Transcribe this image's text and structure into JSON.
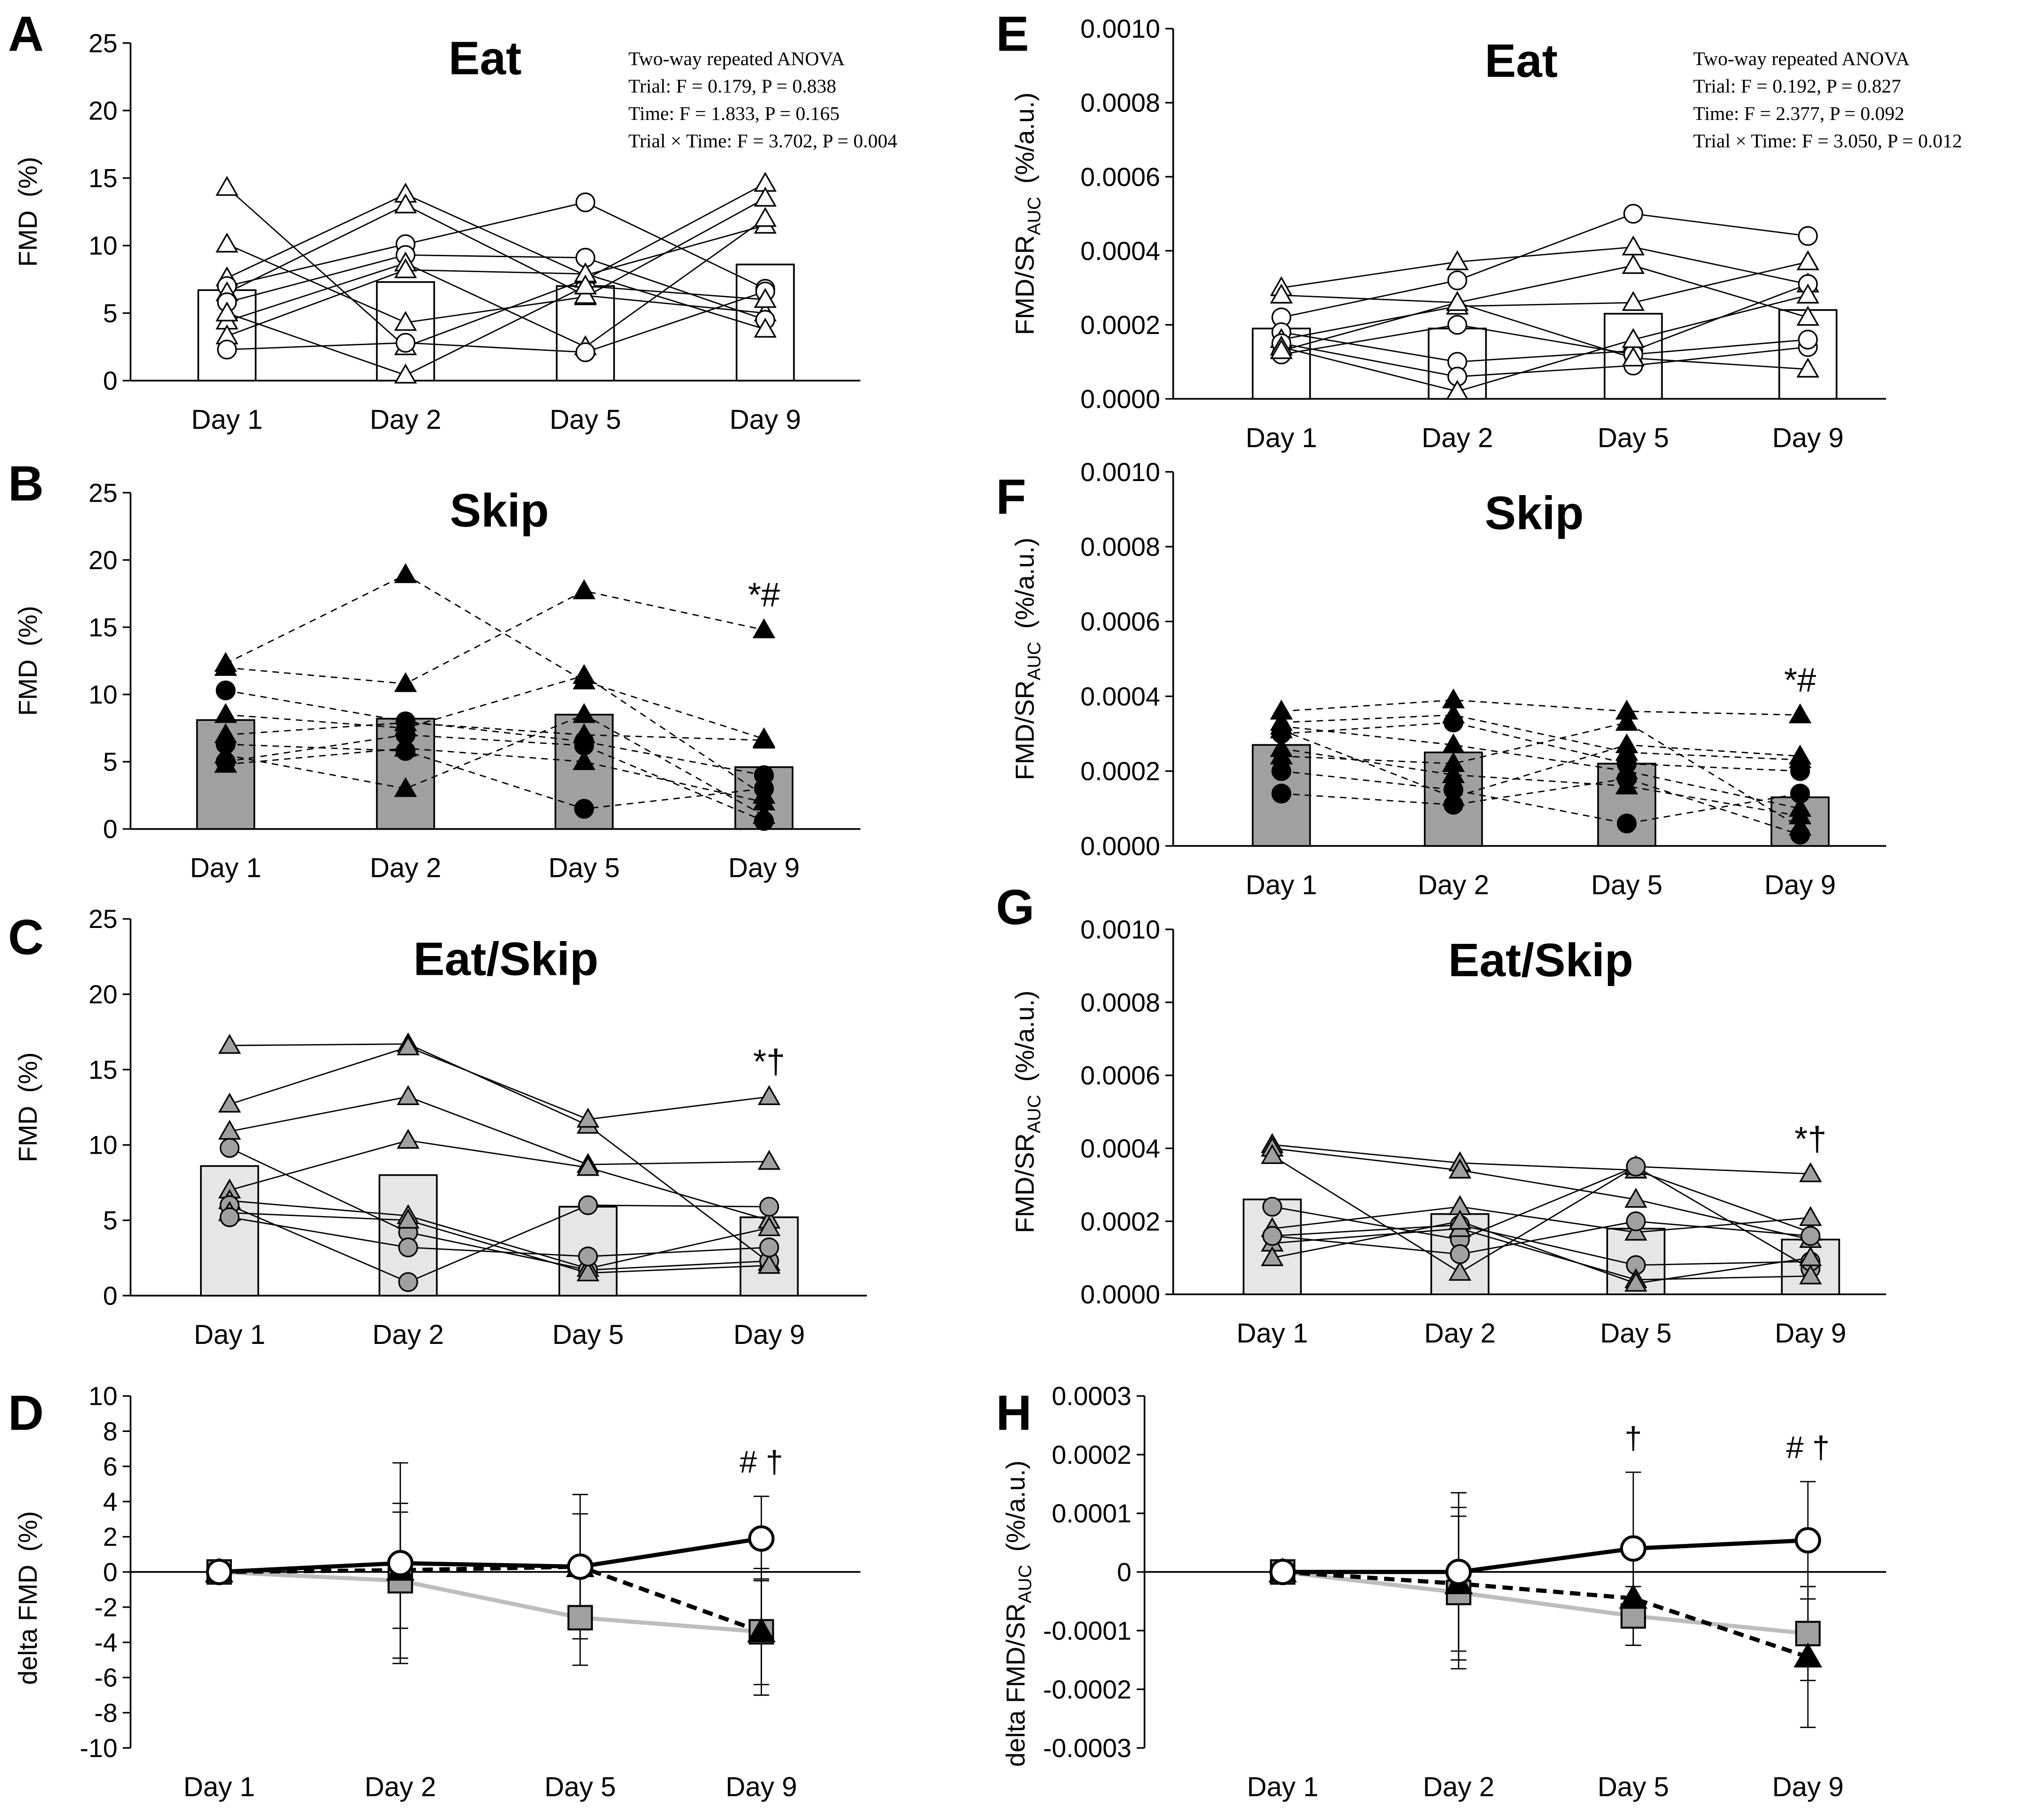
{
  "colors": {
    "open_marker": "#ffffff",
    "black_marker": "#000000",
    "gray_marker": "#a0a0a0",
    "skip_bar": "#a0a0a0",
    "eatskip_bar": "#e6e6e6",
    "eatskip_line": "#bdbdbd"
  },
  "chart_data": [
    {
      "panel": "A",
      "type": "bar",
      "title": "Eat",
      "ylabel": {
        "main": "FMD",
        "sub": "",
        "unit": "(%)"
      },
      "ylim": [
        0,
        25
      ],
      "yticks": [
        "0",
        "5",
        "10",
        "15",
        "20",
        "25"
      ],
      "ytick_values": [
        0,
        5,
        10,
        15,
        20,
        25
      ],
      "categories": [
        "Day 1",
        "Day 2",
        "Day 5",
        "Day 9"
      ],
      "bar_values": [
        6.7,
        7.3,
        7.0,
        8.6
      ],
      "marker_fill": "open",
      "line_style": "solid",
      "subjects": [
        {
          "marker": "triangle",
          "values": [
            14.3,
            2.5,
            7.5,
            14.6
          ]
        },
        {
          "marker": "triangle",
          "values": [
            10.1,
            4.3,
            6.2,
            13.5
          ]
        },
        {
          "marker": "triangle",
          "values": [
            7.6,
            13.8,
            7.8,
            11.5
          ]
        },
        {
          "marker": "circle",
          "values": [
            7.0,
            10.1,
            13.2,
            6.8
          ]
        },
        {
          "marker": "triangle",
          "values": [
            6.5,
            13.0,
            6.3,
            5.0
          ]
        },
        {
          "marker": "circle",
          "values": [
            5.8,
            9.3,
            9.1,
            4.5
          ]
        },
        {
          "marker": "triangle",
          "values": [
            4.4,
            8.7,
            2.5,
            12.0
          ]
        },
        {
          "marker": "triangle",
          "values": [
            3.3,
            8.2,
            7.9,
            3.8
          ]
        },
        {
          "marker": "circle",
          "values": [
            2.3,
            2.8,
            2.1,
            6.6
          ]
        },
        {
          "marker": "triangle",
          "values": [
            5.0,
            0.4,
            7.0,
            6.0
          ]
        }
      ],
      "annotation": "",
      "anova": [
        "Two-way repeated ANOVA",
        "Trial: F = 0.179, P = 0.838",
        "Time: F = 1.833, P = 0.165",
        "Trial × Time: F = 3.702, P = 0.004"
      ]
    },
    {
      "panel": "B",
      "type": "bar",
      "title": "Skip",
      "ylabel": {
        "main": "FMD",
        "sub": "",
        "unit": "(%)"
      },
      "ylim": [
        0,
        25
      ],
      "yticks": [
        "0",
        "5",
        "10",
        "15",
        "20",
        "25"
      ],
      "ytick_values": [
        0,
        5,
        10,
        15,
        20,
        25
      ],
      "categories": [
        "Day 1",
        "Day 2",
        "Day 5",
        "Day 9"
      ],
      "bar_values": [
        8.1,
        8.2,
        8.5,
        4.6
      ],
      "marker_fill": "black",
      "line_style": "dashed",
      "subjects": [
        {
          "marker": "triangle",
          "values": [
            12.3,
            18.9,
            11.0,
            6.7
          ]
        },
        {
          "marker": "triangle",
          "values": [
            12.0,
            10.8,
            17.7,
            14.8
          ]
        },
        {
          "marker": "circle",
          "values": [
            10.3,
            8.0,
            6.5,
            4.0
          ]
        },
        {
          "marker": "triangle",
          "values": [
            8.5,
            7.5,
            11.4,
            2.5
          ]
        },
        {
          "marker": "triangle",
          "values": [
            7.0,
            7.9,
            7.0,
            6.6
          ]
        },
        {
          "marker": "circle",
          "values": [
            6.3,
            5.8,
            1.5,
            3.0
          ]
        },
        {
          "marker": "triangle",
          "values": [
            5.5,
            3.0,
            8.5,
            1.0
          ]
        },
        {
          "marker": "circle",
          "values": [
            5.0,
            7.0,
            6.2,
            0.6
          ]
        },
        {
          "marker": "triangle",
          "values": [
            4.8,
            6.0,
            5.0,
            2.0
          ]
        }
      ],
      "annotation": "*#"
    },
    {
      "panel": "C",
      "type": "bar",
      "title": "Eat/Skip",
      "ylabel": {
        "main": "FMD",
        "sub": "",
        "unit": "(%)"
      },
      "ylim": [
        0,
        25
      ],
      "yticks": [
        "0",
        "5",
        "10",
        "15",
        "20",
        "25"
      ],
      "ytick_values": [
        0,
        5,
        10,
        15,
        20,
        25
      ],
      "categories": [
        "Day 1",
        "Day 2",
        "Day 5",
        "Day 9"
      ],
      "bar_values": [
        8.6,
        8.0,
        5.9,
        5.2
      ],
      "marker_fill": "gray",
      "line_style": "solid",
      "subjects": [
        {
          "marker": "triangle",
          "values": [
            16.6,
            16.7,
            11.3,
            2.2
          ]
        },
        {
          "marker": "triangle",
          "values": [
            12.7,
            16.5,
            11.7,
            13.2
          ]
        },
        {
          "marker": "triangle",
          "values": [
            10.9,
            13.2,
            8.7,
            8.9
          ]
        },
        {
          "marker": "circle",
          "values": [
            9.8,
            4.2,
            1.7,
            2.3
          ]
        },
        {
          "marker": "triangle",
          "values": [
            7.0,
            10.3,
            8.5,
            5.0
          ]
        },
        {
          "marker": "triangle",
          "values": [
            6.3,
            5.3,
            1.8,
            4.5
          ]
        },
        {
          "marker": "circle",
          "values": [
            6.0,
            0.9,
            6.0,
            5.9
          ]
        },
        {
          "marker": "triangle",
          "values": [
            5.5,
            5.0,
            1.5,
            2.0
          ]
        },
        {
          "marker": "circle",
          "values": [
            5.2,
            3.2,
            2.6,
            3.2
          ]
        }
      ],
      "annotation": "*†"
    },
    {
      "panel": "D",
      "type": "line",
      "title": "",
      "ylabel": {
        "main": "delta FMD",
        "sub": "",
        "unit": "(%)"
      },
      "ylim": [
        -10,
        10
      ],
      "yticks": [
        "-10",
        "-8",
        "-6",
        "-4",
        "-2",
        "0",
        "2",
        "4",
        "6",
        "8",
        "10"
      ],
      "ytick_values": [
        -10,
        -8,
        -6,
        -4,
        -2,
        0,
        2,
        4,
        6,
        8,
        10
      ],
      "categories": [
        "Day 1",
        "Day 2",
        "Day 5",
        "Day 9"
      ],
      "series": [
        {
          "marker": "circle",
          "fill": "open",
          "line": "solid-black",
          "values": [
            0,
            0.5,
            0.3,
            1.9
          ],
          "error": [
            0,
            5.7,
            4.1,
            2.4
          ]
        },
        {
          "marker": "triangle",
          "fill": "black",
          "line": "dashed-black",
          "values": [
            0,
            0.1,
            0.3,
            -3.4
          ],
          "error": [
            0,
            3.3,
            3.0,
            3.6
          ]
        },
        {
          "marker": "square",
          "fill": "gray",
          "line": "solid-gray",
          "values": [
            0,
            -0.5,
            -2.6,
            -3.4
          ],
          "error": [
            0,
            4.4,
            2.7,
            3.0
          ]
        }
      ],
      "annotations": [
        {
          "category": "Day 9",
          "text": "# †"
        }
      ]
    },
    {
      "panel": "E",
      "type": "bar",
      "title": "Eat",
      "ylabel": {
        "main": "FMD/SR",
        "sub": "AUC",
        "unit": "(%/a.u.)"
      },
      "ylim": [
        0,
        0.001
      ],
      "yticks": [
        "0.0000",
        "0.0002",
        "0.0004",
        "0.0006",
        "0.0008",
        "0.0010"
      ],
      "ytick_values": [
        0,
        0.0002,
        0.0004,
        0.0006,
        0.0008,
        0.001
      ],
      "categories": [
        "Day 1",
        "Day 2",
        "Day 5",
        "Day 9"
      ],
      "bar_values": [
        0.00019,
        0.00019,
        0.00023,
        0.00024
      ],
      "marker_fill": "open",
      "line_style": "solid",
      "subjects": [
        {
          "marker": "triangle",
          "values": [
            0.0003,
            0.00037,
            0.00041,
            0.00031
          ]
        },
        {
          "marker": "triangle",
          "values": [
            0.00028,
            0.00026,
            0.00036,
            0.00022
          ]
        },
        {
          "marker": "circle",
          "values": [
            0.00022,
            0.00032,
            0.0005,
            0.00044
          ]
        },
        {
          "marker": "circle",
          "values": [
            0.00018,
            0.0001,
            0.00013,
            0.00031
          ]
        },
        {
          "marker": "triangle",
          "values": [
            0.00016,
            0.00025,
            0.00026,
            0.00037
          ]
        },
        {
          "marker": "circle",
          "values": [
            0.00015,
            6e-05,
            9e-05,
            0.00014
          ]
        },
        {
          "marker": "circle",
          "values": [
            0.00012,
            0.0002,
            0.00012,
            0.00016
          ]
        },
        {
          "marker": "triangle",
          "values": [
            0.00014,
            2e-05,
            0.00016,
            0.00028
          ]
        },
        {
          "marker": "triangle",
          "values": [
            0.00013,
            0.00026,
            0.00011,
            8e-05
          ]
        }
      ],
      "annotation": "",
      "anova": [
        "Two-way repeated ANOVA",
        "Trial: F = 0.192, P = 0.827",
        "Time: F = 2.377, P = 0.092",
        "Trial × Time: F = 3.050, P = 0.012"
      ]
    },
    {
      "panel": "F",
      "type": "bar",
      "title": "Skip",
      "ylabel": {
        "main": "FMD/SR",
        "sub": "AUC",
        "unit": "(%/a.u.)"
      },
      "ylim": [
        0,
        0.001
      ],
      "yticks": [
        "0.0000",
        "0.0002",
        "0.0004",
        "0.0006",
        "0.0008",
        "0.0010"
      ],
      "ytick_values": [
        0,
        0.0002,
        0.0004,
        0.0006,
        0.0008,
        0.001
      ],
      "categories": [
        "Day 1",
        "Day 2",
        "Day 5",
        "Day 9"
      ],
      "bar_values": [
        0.00027,
        0.00025,
        0.00022,
        0.00013
      ],
      "marker_fill": "black",
      "line_style": "dashed",
      "subjects": [
        {
          "marker": "triangle",
          "values": [
            0.00036,
            0.00039,
            0.00036,
            0.00035
          ]
        },
        {
          "marker": "triangle",
          "values": [
            0.00033,
            0.00035,
            0.00025,
            0.00023
          ]
        },
        {
          "marker": "triangle",
          "values": [
            0.00031,
            0.00013,
            0.00027,
            0.00024
          ]
        },
        {
          "marker": "circle",
          "values": [
            0.0003,
            0.00033,
            0.00022,
            0.0002
          ]
        },
        {
          "marker": "triangle",
          "values": [
            0.00026,
            0.00019,
            0.00016,
            8e-05
          ]
        },
        {
          "marker": "triangle",
          "values": [
            0.00024,
            0.00022,
            0.00033,
            5e-05
          ]
        },
        {
          "marker": "circle",
          "values": [
            0.0002,
            0.00015,
            6e-05,
            0.00014
          ]
        },
        {
          "marker": "circle",
          "values": [
            0.00014,
            0.00011,
            0.00018,
            3e-05
          ]
        },
        {
          "marker": "triangle",
          "values": [
            0.00032,
            0.00027,
            0.0002,
            0.0001
          ]
        }
      ],
      "annotation": "*#"
    },
    {
      "panel": "G",
      "type": "bar",
      "title": "Eat/Skip",
      "ylabel": {
        "main": "FMD/SR",
        "sub": "AUC",
        "unit": "(%/a.u.)"
      },
      "ylim": [
        0,
        0.001
      ],
      "yticks": [
        "0.0000",
        "0.0002",
        "0.0004",
        "0.0006",
        "0.0008",
        "0.0010"
      ],
      "ytick_values": [
        0,
        0.0002,
        0.0004,
        0.0006,
        0.0008,
        0.001
      ],
      "categories": [
        "Day 1",
        "Day 2",
        "Day 5",
        "Day 9"
      ],
      "bar_values": [
        0.00026,
        0.00022,
        0.00018,
        0.00015
      ],
      "marker_fill": "gray",
      "line_style": "solid",
      "subjects": [
        {
          "marker": "triangle",
          "values": [
            0.00041,
            0.00036,
            0.00034,
            0.00017
          ]
        },
        {
          "marker": "triangle",
          "values": [
            0.0004,
            0.00034,
            0.00026,
            0.00015
          ]
        },
        {
          "marker": "triangle",
          "values": [
            0.00038,
            6e-05,
            0.00035,
            0.00033
          ]
        },
        {
          "marker": "circle",
          "values": [
            0.00024,
            0.00015,
            0.00035,
            7e-05
          ]
        },
        {
          "marker": "triangle",
          "values": [
            0.00018,
            0.00024,
            0.00017,
            0.00021
          ]
        },
        {
          "marker": "circle",
          "values": [
            0.00016,
            0.00019,
            8e-05,
            9e-05
          ]
        },
        {
          "marker": "triangle",
          "values": [
            0.00014,
            0.00018,
            4e-05,
            5e-05
          ]
        },
        {
          "marker": "triangle",
          "values": [
            0.0001,
            0.0002,
            3e-05,
            0.0001
          ]
        },
        {
          "marker": "circle",
          "values": [
            0.00016,
            0.00011,
            0.0002,
            0.00016
          ]
        }
      ],
      "annotation": "*†"
    },
    {
      "panel": "H",
      "type": "line",
      "title": "",
      "ylabel": {
        "main": "delta FMD/SR",
        "sub": "AUC",
        "unit": "(%/a.u.)"
      },
      "ylim": [
        -0.0003,
        0.0003
      ],
      "yticks": [
        "-0.0003",
        "-0.0002",
        "-0.0001",
        "0",
        "0.0001",
        "0.0002",
        "0.0003"
      ],
      "ytick_values": [
        -0.0003,
        -0.0002,
        -0.0001,
        0,
        0.0001,
        0.0002,
        0.0003
      ],
      "categories": [
        "Day 1",
        "Day 2",
        "Day 5",
        "Day 9"
      ],
      "series": [
        {
          "marker": "circle",
          "fill": "open",
          "line": "solid-black",
          "values": [
            0,
            0,
            4e-05,
            5.4e-05
          ],
          "error": [
            0,
            0.000135,
            0.00013,
            0.0001
          ]
        },
        {
          "marker": "triangle",
          "fill": "black",
          "line": "dashed-black",
          "values": [
            0,
            -2e-05,
            -4.5e-05,
            -0.000145
          ],
          "error": [
            0,
            0.00013,
            8e-05,
            0.00012
          ]
        },
        {
          "marker": "square",
          "fill": "gray",
          "line": "solid-gray",
          "values": [
            0,
            -3.5e-05,
            -7.5e-05,
            -0.000105
          ],
          "error": [
            0,
            0.00013,
            5e-05,
            8e-05
          ]
        }
      ],
      "annotations": [
        {
          "category": "Day 5",
          "text": "†"
        },
        {
          "category": "Day 9",
          "text": "# †"
        }
      ]
    }
  ]
}
